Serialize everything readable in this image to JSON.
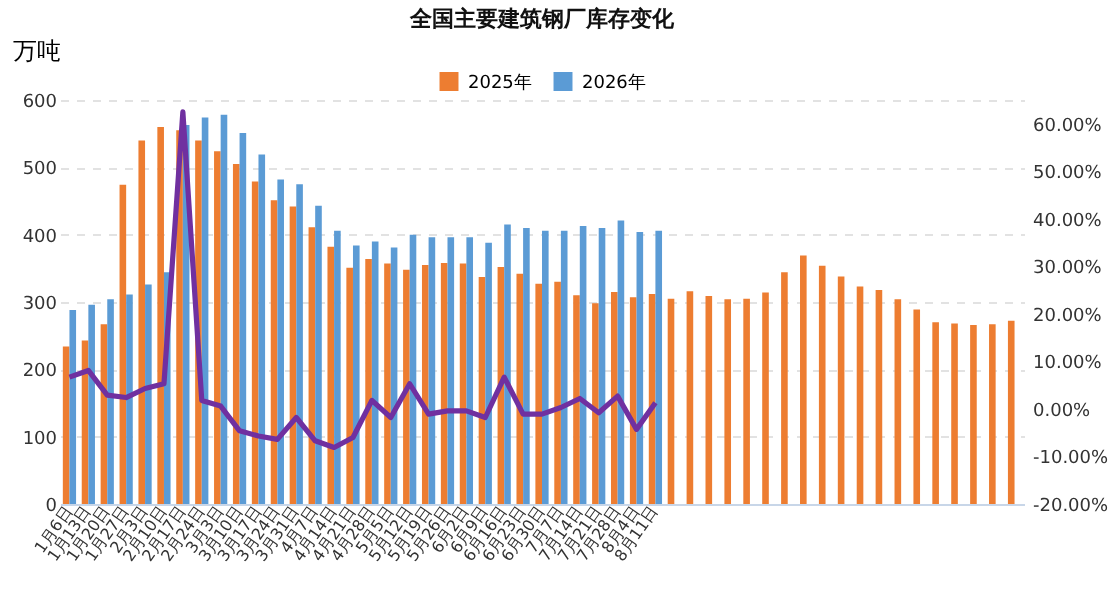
{
  "chart_data": {
    "type": "bar",
    "title": "全国主要建筑钢厂库存变化",
    "ylabel": "万吨",
    "categories": [
      "1月6日",
      "1月13日",
      "1月20日",
      "1月27日",
      "2月3日",
      "2月10日",
      "2月17日",
      "2月24日",
      "3月3日",
      "3月10日",
      "3月17日",
      "3月24日",
      "3月31日",
      "4月7日",
      "4月14日",
      "4月21日",
      "4月28日",
      "5月5日",
      "5月12日",
      "5月19日",
      "5月26日",
      "6月2日",
      "6月9日",
      "6月16日",
      "6月23日",
      "6月30日",
      "7月7日",
      "7月14日",
      "7月21日",
      "7月28日",
      "8月4日",
      "8月11日",
      null,
      null,
      null,
      null,
      null,
      null,
      null,
      null,
      null,
      null,
      null,
      null,
      null,
      null,
      null,
      null,
      null,
      null,
      null
    ],
    "series": [
      {
        "name": "2025年",
        "color": "#ed7d31",
        "values": [
          234,
          243,
          267,
          474,
          540,
          560,
          555,
          540,
          524,
          505,
          479,
          451,
          442,
          411,
          382,
          351,
          364,
          357,
          348,
          355,
          358,
          357,
          337,
          352,
          342,
          327,
          330,
          310,
          298,
          315,
          307,
          312,
          305,
          316,
          309,
          304,
          305,
          314,
          344,
          369,
          354,
          338,
          323,
          318,
          304,
          289,
          270,
          268,
          266,
          267,
          272
        ]
      },
      {
        "name": "2026年",
        "color": "#5b9bd5",
        "values": [
          288,
          296,
          304,
          311,
          326,
          344,
          563,
          574,
          578,
          551,
          519,
          482,
          475,
          443,
          406,
          384,
          390,
          381,
          400,
          396,
          396,
          396,
          388,
          415,
          410,
          406,
          406,
          413,
          410,
          421,
          404,
          406,
          null,
          null,
          null,
          null,
          null,
          null,
          null,
          null,
          null,
          null,
          null,
          null,
          null,
          null,
          null,
          null,
          null,
          null,
          null
        ]
      },
      {
        "type": "line",
        "axis": "y2",
        "color": "#7030a0",
        "values": [
          6.7,
          8.1,
          2.9,
          2.4,
          4.3,
          5.3,
          62.5,
          1.8,
          0.6,
          -4.6,
          -5.7,
          -6.4,
          -1.8,
          -6.7,
          -8.1,
          -6.0,
          1.8,
          -1.8,
          5.3,
          -1.1,
          -0.4,
          -0.4,
          -1.8,
          6.7,
          -1.1,
          -1.1,
          0.3,
          2.2,
          -0.8,
          2.7,
          -4.3,
          1.3,
          null,
          null,
          null,
          null,
          null,
          null,
          null,
          null,
          null,
          null,
          null,
          null,
          null,
          null,
          null,
          null,
          null,
          null,
          null
        ]
      }
    ],
    "ylim": [
      0,
      600
    ],
    "yticks": [
      0,
      100,
      200,
      300,
      400,
      500,
      600
    ],
    "y2lim": [
      -20,
      65
    ],
    "y2ticks": [
      {
        "value": -20,
        "label": "-20.00%"
      },
      {
        "value": -10,
        "label": "-10.00%"
      },
      {
        "value": 0,
        "label": "0.00%"
      },
      {
        "value": 10,
        "label": "10.00%"
      },
      {
        "value": 20,
        "label": "20.00%"
      },
      {
        "value": 30,
        "label": "30.00%"
      },
      {
        "value": 40,
        "label": "40.00%"
      },
      {
        "value": 50,
        "label": "50.00%"
      },
      {
        "value": 60,
        "label": "60.00%"
      }
    ],
    "grid": "y",
    "legend": "top",
    "marker": "none",
    "line_style": "solid"
  }
}
